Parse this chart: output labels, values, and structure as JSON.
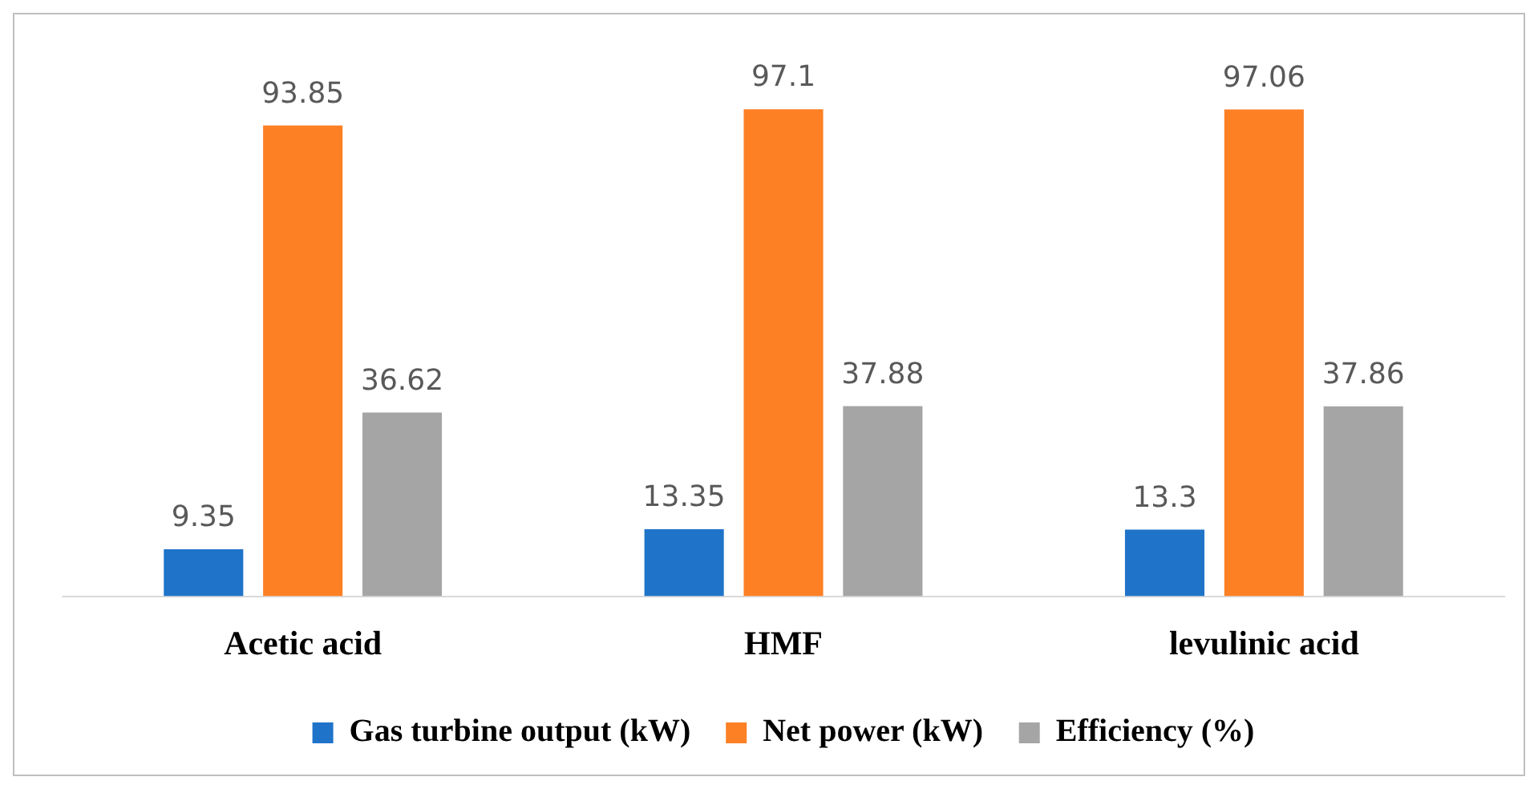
{
  "chart_data": {
    "type": "bar",
    "categories": [
      "Acetic acid",
      "HMF",
      "levulinic acid"
    ],
    "series": [
      {
        "name": "Gas turbine output (kW)",
        "color": "#1f74c9",
        "values": [
          9.35,
          13.35,
          13.3
        ]
      },
      {
        "name": "Net power (kW)",
        "color": "#fd8025",
        "values": [
          93.85,
          97.1,
          97.06
        ]
      },
      {
        "name": "Efficiency (%)",
        "color": "#a5a5a5",
        "values": [
          36.62,
          37.88,
          37.86
        ]
      }
    ],
    "data_labels": true,
    "legend": "bottom",
    "grid": false
  }
}
